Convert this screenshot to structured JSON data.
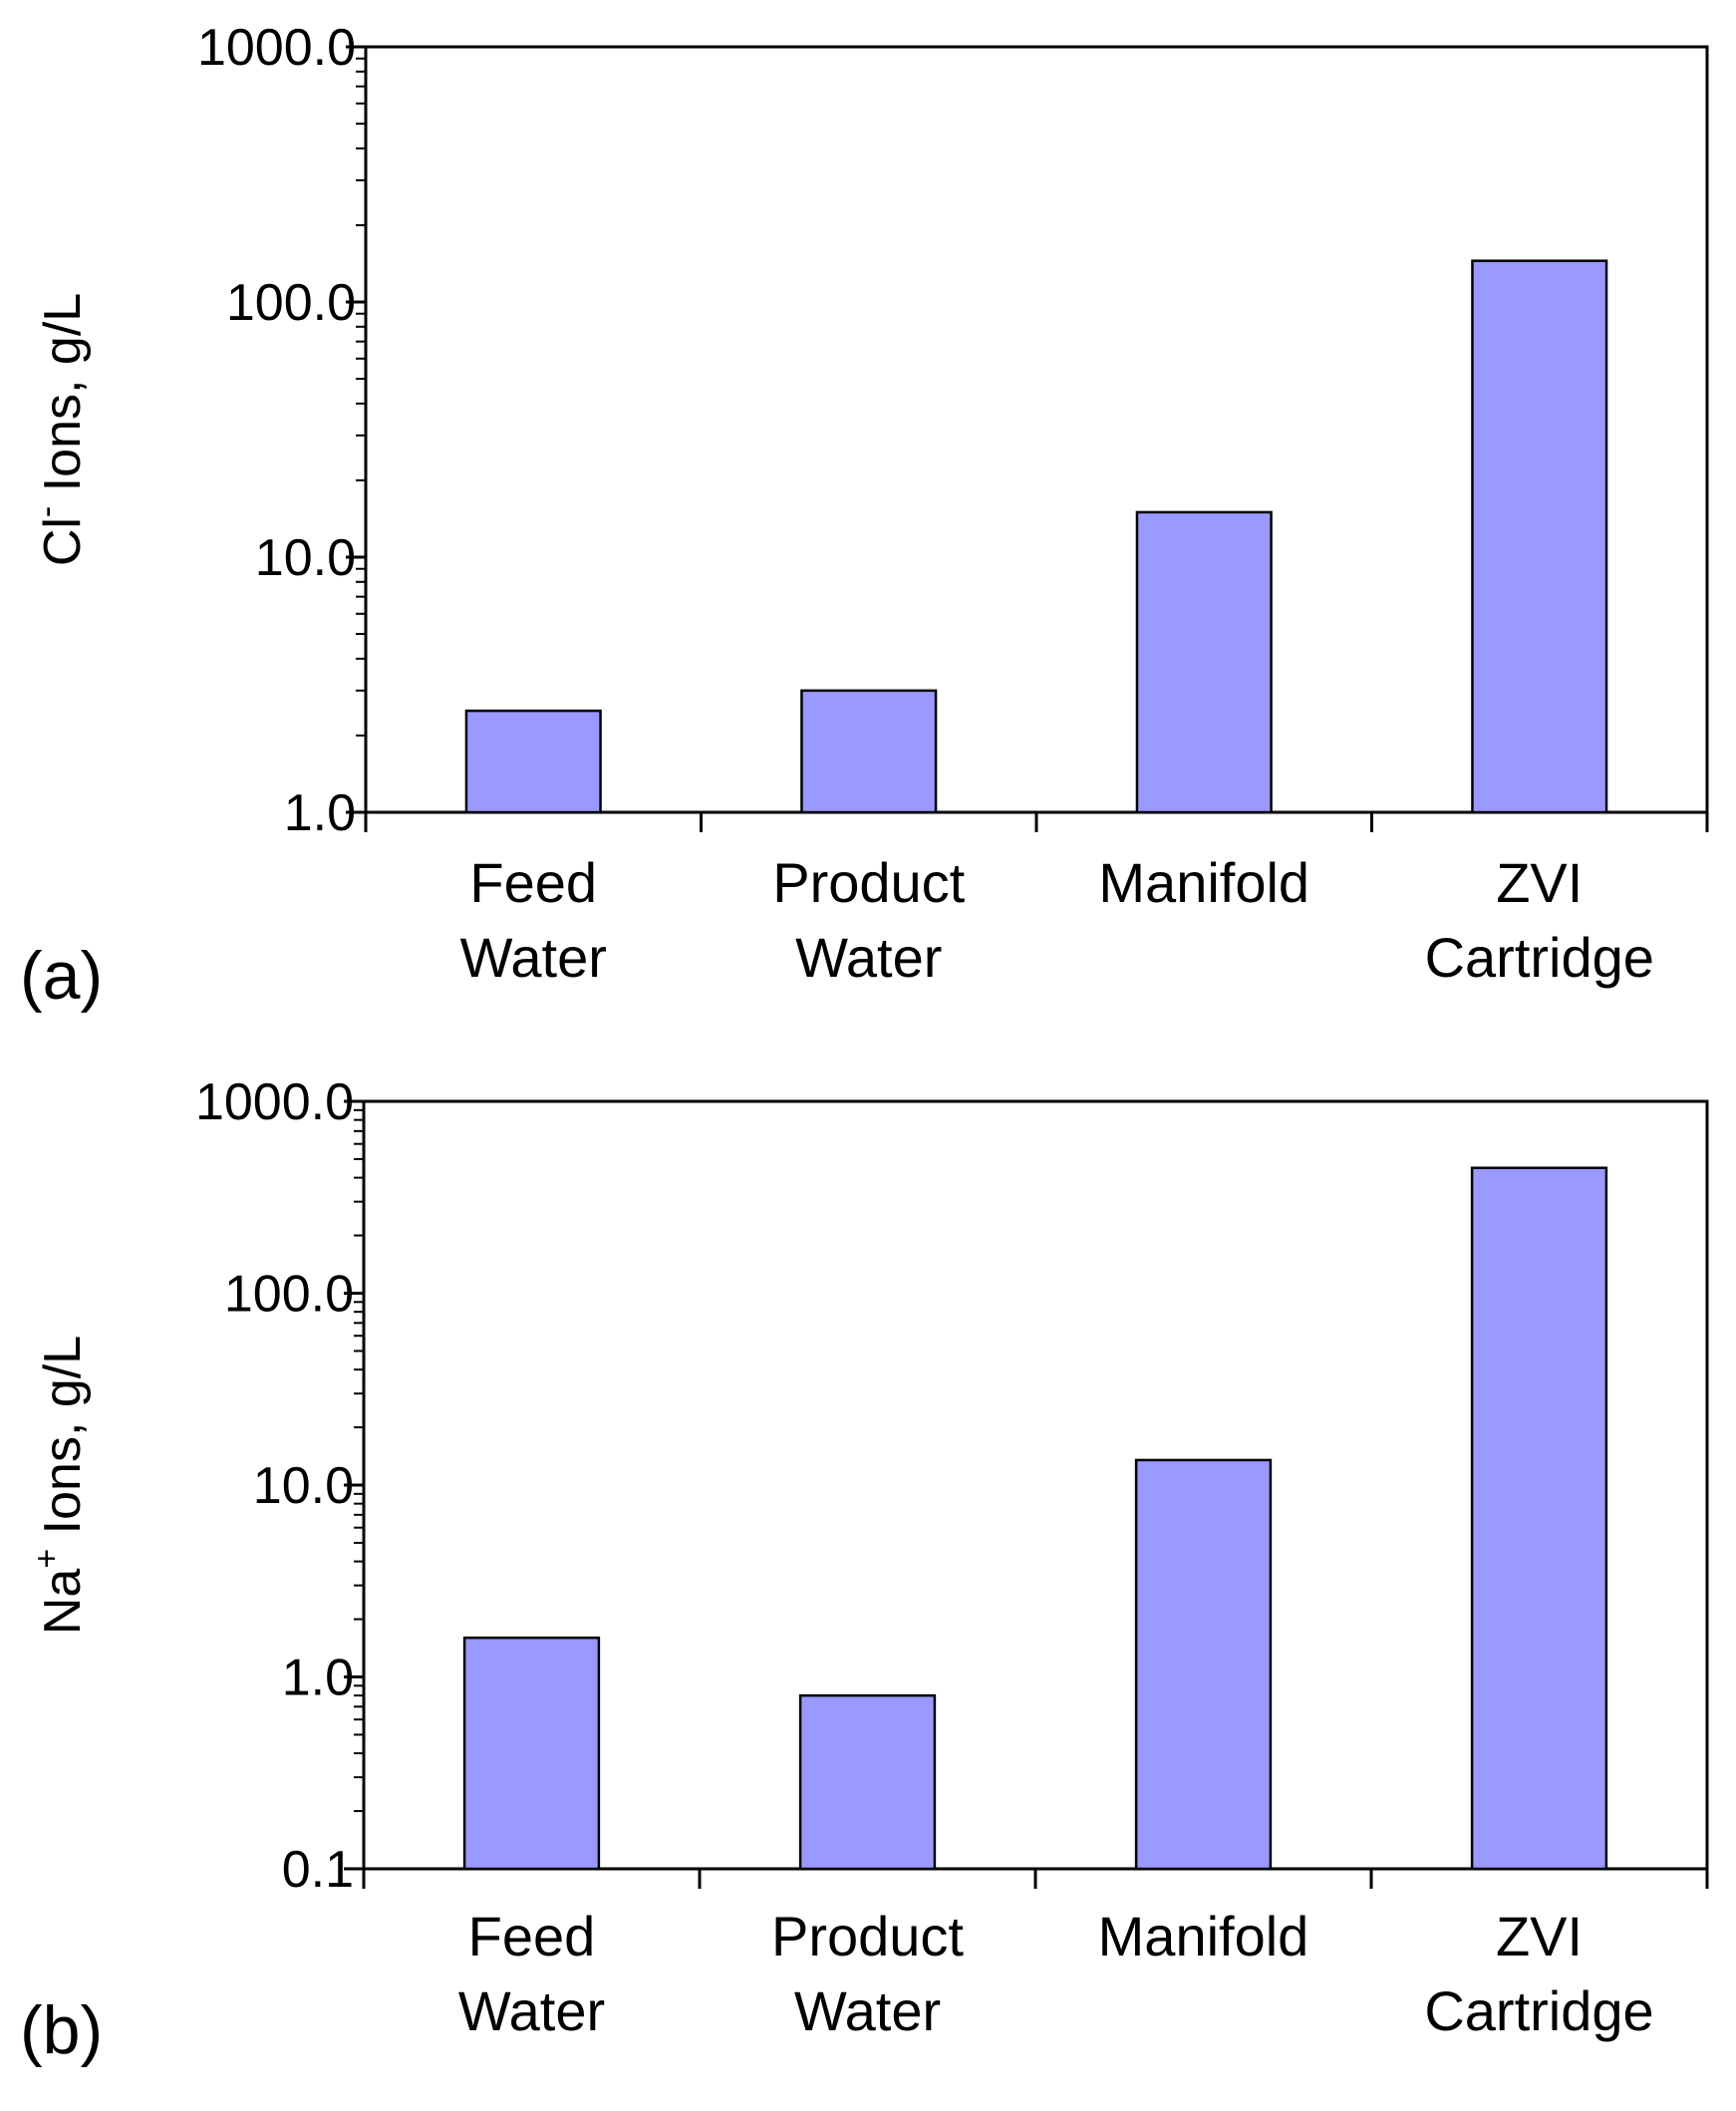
{
  "chart_data": [
    {
      "type": "bar",
      "panel_label": "(a)",
      "categories": [
        [
          "Feed",
          "Water"
        ],
        [
          "Product",
          "Water"
        ],
        [
          "Manifold"
        ],
        [
          "ZVI",
          "Cartridge"
        ]
      ],
      "values": [
        2.5,
        3.0,
        15.0,
        145.0
      ],
      "ylabel": {
        "main": "Cl",
        "sup": "-",
        "rest": " Ions, g/L"
      },
      "yscale": "log",
      "ylim": [
        1.0,
        1000.0
      ],
      "yticks": [
        "1.0",
        "10.0",
        "100.0",
        "1000.0"
      ],
      "bar_color": "#9999ff",
      "grid": false,
      "legend": "none"
    },
    {
      "type": "bar",
      "panel_label": "(b)",
      "categories": [
        [
          "Feed",
          "Water"
        ],
        [
          "Product",
          "Water"
        ],
        [
          "Manifold"
        ],
        [
          "ZVI",
          "Cartridge"
        ]
      ],
      "values": [
        1.6,
        0.8,
        13.5,
        450.0
      ],
      "ylabel": {
        "main": "Na",
        "sup": "+",
        "rest": " Ions, g/L"
      },
      "yscale": "log",
      "ylim": [
        0.1,
        1000.0
      ],
      "yticks": [
        "0.1",
        "1.0",
        "10.0",
        "100.0",
        "1000.0"
      ],
      "bar_color": "#9999ff",
      "grid": false,
      "legend": "none"
    }
  ]
}
